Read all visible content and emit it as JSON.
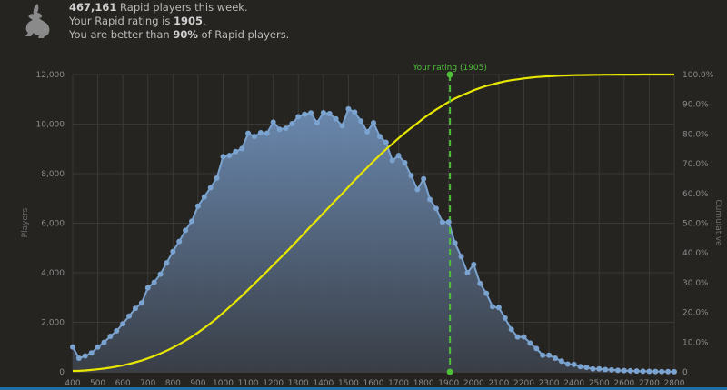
{
  "header": {
    "icon": "rabbit-icon",
    "line1_count": "467,161",
    "line1_rest": " Rapid players this week.",
    "line2_prefix": "Your Rapid rating is ",
    "line2_rating": "1905",
    "line2_suffix": ".",
    "line3_prefix": "You are better than ",
    "line3_pct": "90%",
    "line3_suffix": " of Rapid players."
  },
  "colors": {
    "background": "#262421",
    "players_line": "#7ba3d0",
    "cumulative_line": "#e6e600",
    "marker": "#4fbf3a"
  },
  "chart_data": {
    "type": "area",
    "xlabel": "",
    "ylabel": "Players",
    "y2label": "Cumulative",
    "xlim": [
      400,
      2800
    ],
    "ylim": [
      0,
      12000
    ],
    "y2lim": [
      0,
      100
    ],
    "grid": true,
    "x_ticks": [
      "400",
      "500",
      "600",
      "700",
      "800",
      "900",
      "1000",
      "1100",
      "1200",
      "1300",
      "1400",
      "1500",
      "1600",
      "1700",
      "1800",
      "1900",
      "2000",
      "2100",
      "2200",
      "2300",
      "2400",
      "2500",
      "2600",
      "2700",
      "2800"
    ],
    "y_ticks": [
      "0",
      "2,000",
      "4,000",
      "6,000",
      "8,000",
      "10,000",
      "12,000"
    ],
    "y2_ticks": [
      "0",
      "10.0%",
      "20.0%",
      "30.0%",
      "40.0%",
      "50.0%",
      "60.0%",
      "70.0%",
      "80.0%",
      "90.0%",
      "100.0%"
    ],
    "x_start": 400,
    "x_step": 25,
    "series": [
      {
        "name": "Players",
        "values": [
          1000,
          550,
          640,
          760,
          1000,
          1190,
          1430,
          1650,
          1940,
          2250,
          2560,
          2780,
          3390,
          3610,
          3940,
          4400,
          4860,
          5260,
          5710,
          6080,
          6690,
          7060,
          7430,
          7820,
          8690,
          8730,
          8890,
          9010,
          9630,
          9500,
          9650,
          9630,
          10080,
          9790,
          9830,
          10020,
          10300,
          10400,
          10450,
          10050,
          10460,
          10420,
          10210,
          9930,
          10610,
          10480,
          10120,
          9690,
          10050,
          9500,
          9260,
          8530,
          8730,
          8440,
          7920,
          7360,
          7790,
          6960,
          6590,
          6040,
          6050,
          5200,
          4650,
          4000,
          4330,
          3570,
          3170,
          2630,
          2590,
          2170,
          1710,
          1410,
          1410,
          1160,
          940,
          670,
          670,
          550,
          430,
          310,
          300,
          210,
          180,
          120,
          120,
          90,
          80,
          60,
          50,
          40,
          30,
          25,
          20,
          15,
          10,
          8,
          5
        ]
      },
      {
        "name": "Cumulative",
        "derived_from": "Players"
      }
    ],
    "annotation": {
      "label": "Your rating (1905)",
      "x": 1905
    }
  }
}
